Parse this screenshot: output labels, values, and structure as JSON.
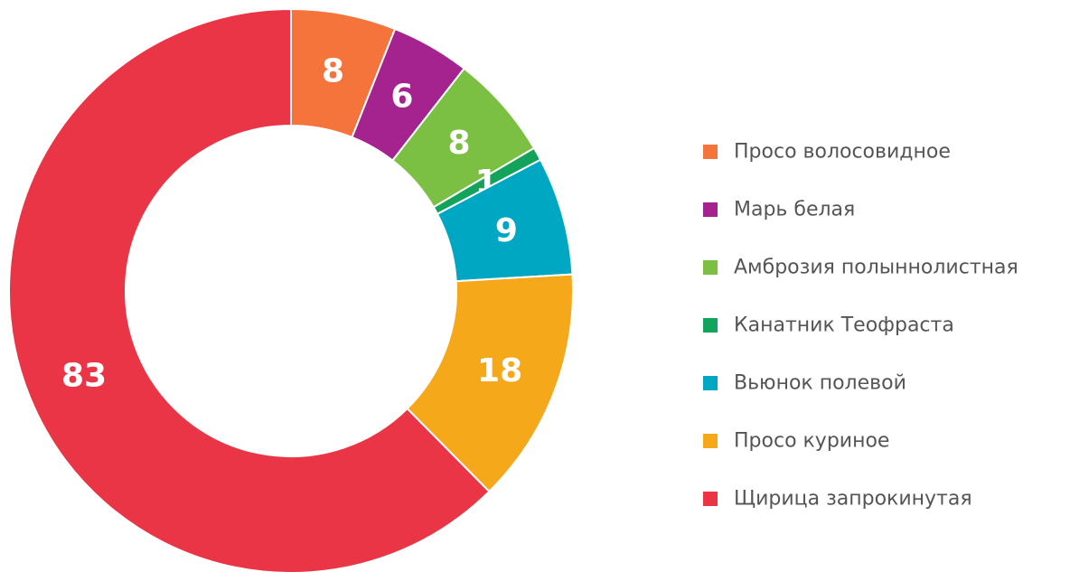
{
  "chart_data": {
    "type": "donut",
    "categories": [
      "Просо волосовидное",
      "Марь белая",
      "Амброзия полыннолистная",
      "Канатник Теофраста",
      "Вьюнок полевой",
      "Просо куриное",
      "Щирица запрокинутая"
    ],
    "values": [
      8,
      6,
      8,
      1,
      9,
      18,
      83
    ],
    "colors": [
      "#f4743b",
      "#a5238f",
      "#7bc043",
      "#13a35a",
      "#00a7c2",
      "#f6a81b",
      "#ea3546"
    ],
    "legend": "right"
  }
}
